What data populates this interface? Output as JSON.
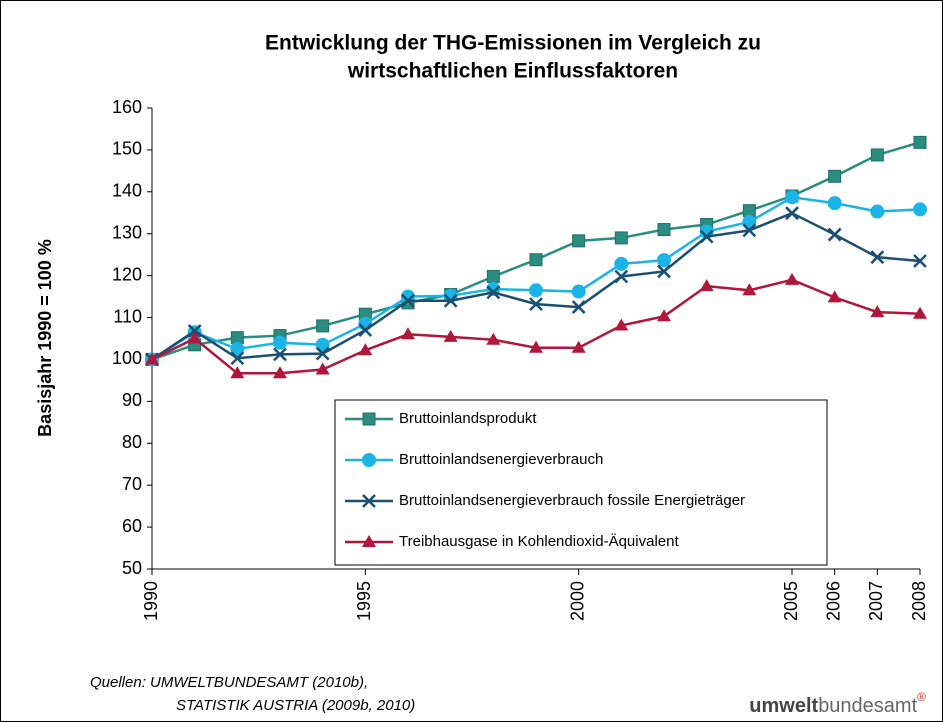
{
  "chart_data": {
    "type": "line",
    "title": [
      "Entwicklung der THG-Emissionen im Vergleich zu",
      "wirtschaftlichen Einflussfaktoren"
    ],
    "y_label": "Basisjahr 1990 = 100 %",
    "x": [
      1990,
      1991,
      1992,
      1993,
      1994,
      1995,
      1996,
      1997,
      1998,
      1999,
      2000,
      2001,
      2002,
      2003,
      2004,
      2005,
      2006,
      2007,
      2008
    ],
    "xlim": [
      1990,
      2008
    ],
    "xticks": [
      1990,
      1995,
      2000,
      2005,
      2006,
      2007,
      2008
    ],
    "ylim": [
      50,
      160
    ],
    "yticks": [
      50,
      60,
      70,
      80,
      90,
      100,
      110,
      120,
      130,
      140,
      150,
      160
    ],
    "grid": false,
    "legend": "lower right",
    "series": [
      {
        "name": "Bruttoinlandsprodukt",
        "color": "#2b8c80",
        "marker": "square",
        "values": [
          100,
          103.5,
          105.2,
          105.7,
          108,
          110.8,
          113.5,
          115.5,
          119.8,
          123.8,
          128.3,
          129,
          131,
          132.2,
          135.5,
          139,
          143.7,
          148.8,
          151.8
        ]
      },
      {
        "name": "Bruttoinlandsenergieverbrauch",
        "color": "#1ab4e6",
        "marker": "circle",
        "values": [
          100,
          106.5,
          102.5,
          104,
          103.5,
          108.5,
          115,
          115.2,
          116.8,
          116.5,
          116.2,
          122.8,
          123.7,
          130.5,
          132.8,
          138.7,
          137.3,
          135.3,
          135.8
        ]
      },
      {
        "name": "Bruttoinlandsenergieverbrauch fossile Energieträger",
        "color": "#1b4f6f",
        "marker": "x",
        "values": [
          100,
          106.8,
          100.3,
          101.2,
          101.4,
          107,
          114,
          114,
          116,
          113.2,
          112.5,
          119.8,
          121,
          129.3,
          130.8,
          134.9,
          129.8,
          124.4,
          123.5
        ]
      },
      {
        "name": "Treibhausgase in Kohlendioxid-Äquivalent",
        "color": "#b0173a",
        "marker": "triangle",
        "values": [
          100,
          105,
          96.7,
          96.7,
          97.6,
          102.2,
          106,
          105.4,
          104.7,
          102.8,
          102.8,
          108.1,
          110.3,
          117.5,
          116.5,
          119,
          114.8,
          111.3,
          110.9
        ]
      }
    ]
  },
  "source": [
    "Quellen: UMWELTBUNDESAMT (2010b),",
    "STATISTIK AUSTRIA (2009b, 2010)"
  ],
  "logo": {
    "bold": "umwelt",
    "normal": "bundesamt",
    "mark": "®"
  }
}
